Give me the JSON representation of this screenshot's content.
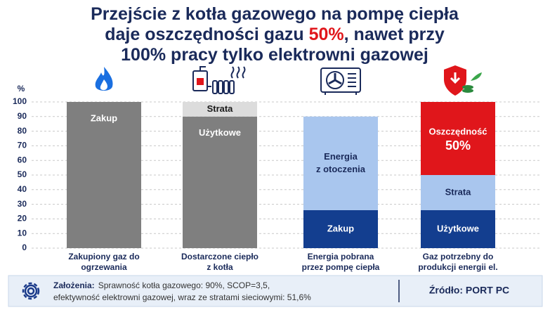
{
  "chart_data": {
    "type": "stacked-bar",
    "title_lines": [
      [
        "Przejście z kotła gazowego na pompę ciepła"
      ],
      [
        "daje oszczędności gazu ",
        "50%",
        ", nawet przy"
      ],
      [
        "100% pracy tylko elektrowni gazowej"
      ]
    ],
    "title_highlight_color": "#e0161b",
    "y_label": "%",
    "ylim": [
      0,
      100
    ],
    "yticks": [
      0,
      10,
      20,
      30,
      40,
      50,
      60,
      70,
      80,
      90,
      100
    ],
    "grid": true,
    "bars": [
      {
        "category": [
          "Zakupiony gaz do",
          "ogrzewania"
        ],
        "segments": [
          {
            "label": [
              "Zakup"
            ],
            "value": 100,
            "color": "#7f7f7f",
            "text_color": "#ffffff"
          }
        ]
      },
      {
        "category": [
          "Dostarczone ciepło",
          "z kotła"
        ],
        "segments": [
          {
            "label": [
              "Użytkowe"
            ],
            "value": 90,
            "color": "#7f7f7f",
            "text_color": "#ffffff"
          },
          {
            "label": [
              "Strata"
            ],
            "value": 10,
            "color": "#dcdcdc",
            "text_color": "#1a1a1a"
          }
        ]
      },
      {
        "category": [
          "Energia pobrana",
          "przez pompę ciepła"
        ],
        "segments": [
          {
            "label": [
              "Zakup"
            ],
            "value": 26,
            "color": "#133e8f",
            "text_color": "#ffffff"
          },
          {
            "label": [
              "Energia",
              "z otoczenia"
            ],
            "value": 64,
            "color": "#a9c6ee",
            "text_color": "#1a2a5a"
          }
        ]
      },
      {
        "category": [
          "Gaz potrzebny do",
          "produkcji energii el."
        ],
        "segments": [
          {
            "label": [
              "Użytkowe"
            ],
            "value": 26,
            "color": "#133e8f",
            "text_color": "#ffffff"
          },
          {
            "label": [
              "Strata"
            ],
            "value": 24,
            "color": "#a9c6ee",
            "text_color": "#1a2a5a"
          },
          {
            "label": [
              "Oszczędność"
            ],
            "value": 50,
            "value_label": "50%",
            "color": "#e0161b",
            "text_color": "#ffffff"
          }
        ]
      }
    ]
  },
  "footer": {
    "assumptions_label": "Założenia:",
    "assumptions": [
      "Sprawność kotła gazowego: 90%, SCOP=3,5,",
      "efektywność elektrowni gazowej, wraz ze stratami sieciowymi: 51,6%"
    ],
    "source": "Źródło: PORT PC"
  }
}
